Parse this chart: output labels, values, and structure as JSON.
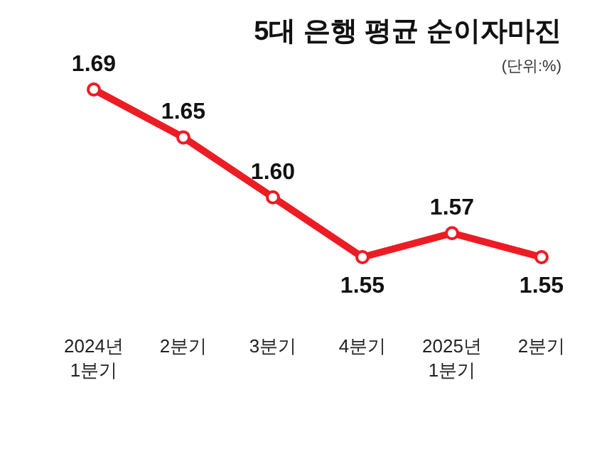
{
  "chart_data": {
    "type": "line",
    "title": "5대 은행 평균 순이자마진",
    "subtitle": "(단위:%)",
    "categories": [
      "2024년\n1분기",
      "2분기",
      "3분기",
      "4분기",
      "2025년\n1분기",
      "2분기"
    ],
    "series": [
      {
        "color": "#ec1c24",
        "values": [
          1.69,
          1.65,
          1.6,
          1.55,
          1.57,
          1.55
        ],
        "value_labels": [
          "1.69",
          "1.65",
          "1.60",
          "1.55",
          "1.57",
          "1.55"
        ]
      }
    ],
    "marker": "circle",
    "line_style": "solid"
  }
}
